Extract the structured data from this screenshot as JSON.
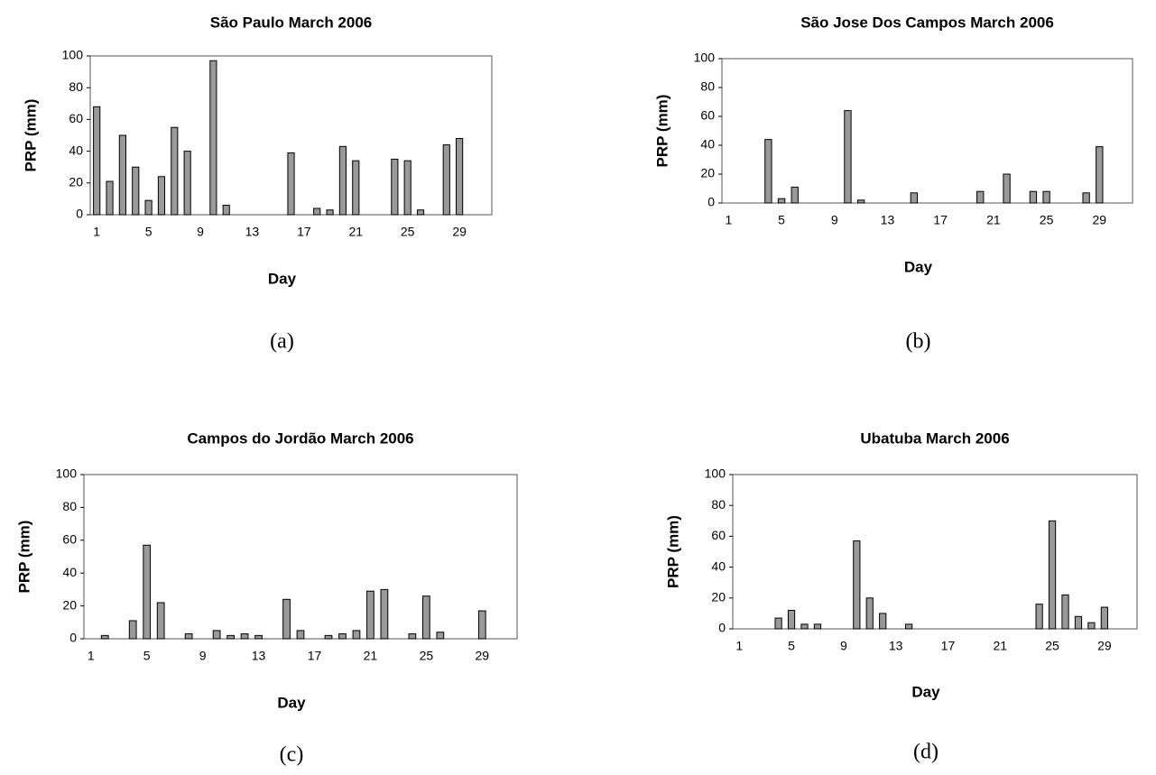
{
  "chart_data": [
    {
      "type": "bar",
      "title": "São Paulo  March  2006",
      "x_label": "Day",
      "y_label": "PRP (mm)",
      "caption": "(a)",
      "categories": [
        "1",
        null,
        null,
        null,
        "5",
        null,
        null,
        null,
        "9",
        null,
        null,
        null,
        "13",
        null,
        null,
        null,
        "17",
        null,
        null,
        null,
        "21",
        null,
        null,
        null,
        "25",
        null,
        null,
        null,
        "29",
        null,
        null
      ],
      "values": [
        68,
        21,
        50,
        30,
        9,
        24,
        55,
        40,
        0,
        97,
        6,
        0,
        0,
        0,
        0,
        39,
        0,
        4,
        3,
        43,
        34,
        0,
        0,
        35,
        34,
        3,
        0,
        44,
        48,
        0,
        0
      ],
      "color": "#999999",
      "ylim": [
        0,
        100
      ],
      "yticks": [
        0,
        20,
        40,
        60,
        80,
        100
      ]
    },
    {
      "type": "bar",
      "title": "São Jose Dos Campos  March  2006",
      "x_label": "Day",
      "y_label": "PRP (mm)",
      "caption": "(b)",
      "categories": [
        "1",
        null,
        null,
        null,
        "5",
        null,
        null,
        null,
        "9",
        null,
        null,
        null,
        "13",
        null,
        null,
        null,
        "17",
        null,
        null,
        null,
        "21",
        null,
        null,
        null,
        "25",
        null,
        null,
        null,
        "29",
        null,
        null
      ],
      "values": [
        0,
        0,
        0,
        44,
        3,
        11,
        0,
        0,
        0,
        64,
        2,
        0,
        0,
        0,
        7,
        0,
        0,
        0,
        0,
        8,
        0,
        20,
        0,
        8,
        8,
        0,
        0,
        7,
        39,
        0,
        0
      ],
      "color": "#999999",
      "ylim": [
        0,
        100
      ],
      "yticks": [
        0,
        20,
        40,
        60,
        80,
        100
      ]
    },
    {
      "type": "bar",
      "title": "Campos do Jordão  March  2006",
      "x_label": "Day",
      "y_label": "PRP (mm)",
      "caption": "(c)",
      "categories": [
        "1",
        null,
        null,
        null,
        "5",
        null,
        null,
        null,
        "9",
        null,
        null,
        null,
        "13",
        null,
        null,
        null,
        "17",
        null,
        null,
        null,
        "21",
        null,
        null,
        null,
        "25",
        null,
        null,
        null,
        "29",
        null,
        null
      ],
      "values": [
        0,
        2,
        0,
        11,
        57,
        22,
        0,
        3,
        0,
        5,
        2,
        3,
        2,
        0,
        24,
        5,
        0,
        2,
        3,
        5,
        29,
        30,
        0,
        3,
        26,
        4,
        0,
        0,
        17,
        0,
        0
      ],
      "color": "#999999",
      "ylim": [
        0,
        100
      ],
      "yticks": [
        0,
        20,
        40,
        60,
        80,
        100
      ]
    },
    {
      "type": "bar",
      "title": "Ubatuba  March  2006",
      "x_label": "Day",
      "y_label": "PRP (mm)",
      "caption": "(d)",
      "categories": [
        "1",
        null,
        null,
        null,
        "5",
        null,
        null,
        null,
        "9",
        null,
        null,
        null,
        "13",
        null,
        null,
        null,
        "17",
        null,
        null,
        null,
        "21",
        null,
        null,
        null,
        "25",
        null,
        null,
        null,
        "29",
        null,
        null
      ],
      "values": [
        0,
        0,
        0,
        7,
        12,
        3,
        3,
        0,
        0,
        57,
        20,
        10,
        0,
        3,
        0,
        0,
        0,
        0,
        0,
        0,
        0,
        0,
        0,
        16,
        70,
        22,
        8,
        4,
        14,
        0,
        0
      ],
      "color": "#999999",
      "ylim": [
        0,
        100
      ],
      "yticks": [
        0,
        20,
        40,
        60,
        80,
        100
      ]
    }
  ]
}
